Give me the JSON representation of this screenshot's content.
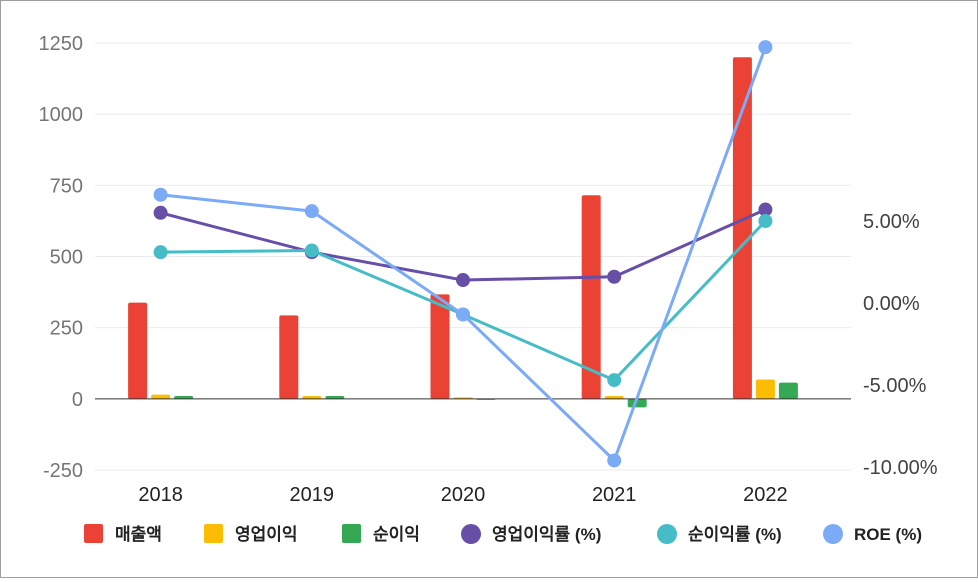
{
  "chart_data": {
    "type": "bar",
    "categories": [
      "2018",
      "2019",
      "2020",
      "2021",
      "2022"
    ],
    "bar_series": [
      {
        "name": "매출액",
        "color": "#ea4335",
        "values": [
          338,
          293,
          367,
          715,
          1200
        ]
      },
      {
        "name": "영업이익",
        "color": "#fbbc04",
        "values": [
          15,
          10,
          5,
          10,
          68
        ]
      },
      {
        "name": "순이익",
        "color": "#34a853",
        "values": [
          10,
          10,
          0,
          -30,
          57
        ]
      }
    ],
    "line_series": [
      {
        "name": "영업이익률 (%)",
        "color": "#674ea7",
        "values": [
          5.5,
          3.1,
          1.4,
          1.6,
          5.7
        ]
      },
      {
        "name": "순이익률 (%)",
        "color": "#46bdc6",
        "values": [
          3.1,
          3.2,
          -0.7,
          -4.7,
          5.0
        ]
      },
      {
        "name": "ROE (%)",
        "color": "#7baaf7",
        "values": [
          6.6,
          5.6,
          -0.7,
          -9.6,
          15.6
        ]
      }
    ],
    "y_left": {
      "ylim": [
        -250,
        1250
      ],
      "ticks": [
        "-250",
        "0",
        "250",
        "500",
        "750",
        "1000",
        "1250"
      ]
    },
    "y_right": {
      "ticks": [
        "-10.00%",
        "-5.00%",
        "0.00%",
        "5.00%"
      ],
      "tick_values": [
        -10,
        -5,
        0,
        5
      ]
    },
    "grid": true,
    "legend": "bottom"
  }
}
